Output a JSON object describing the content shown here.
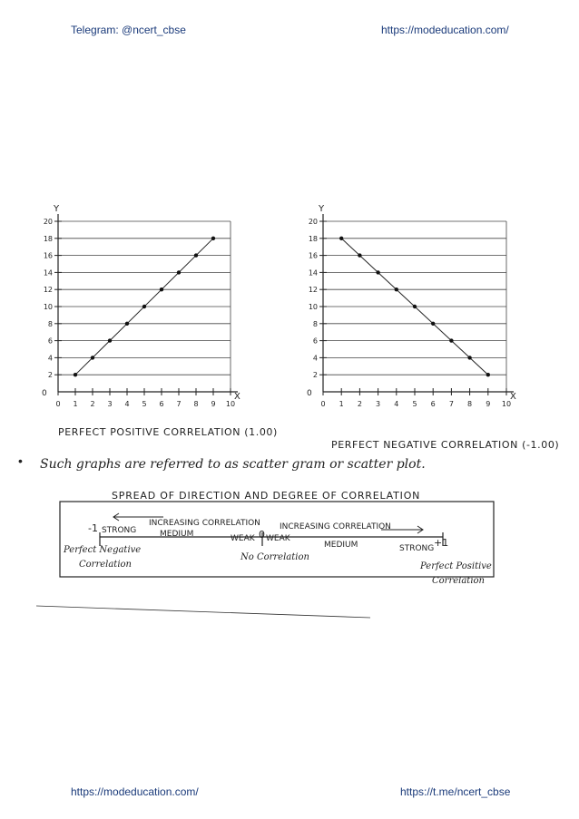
{
  "header": {
    "left": "Telegram: @ncert_cbse",
    "right": "https://modeducation.com/"
  },
  "footer": {
    "left": "https://modeducation.com/",
    "right": "https://t.me/ncert_cbse"
  },
  "text": {
    "bullet": "•",
    "sentence": "Such graphs are referred to as scatter gram or scatter plot.",
    "spread_title": "SPREAD OF DIRECTION AND DEGREE OF CORRELATION"
  },
  "spread": {
    "increasing_left": "INCREASING CORRELATION",
    "increasing_right": "INCREASING CORRELATION",
    "minus_one": "-1",
    "plus_one": "+1",
    "zero": "0",
    "strong_left": "STRONG",
    "strong_right": "STRONG",
    "medium_left": "MEDIUM",
    "medium_right": "MEDIUM",
    "weak_left": "WEAK",
    "weak_right": "WEAK",
    "perfect_negative_1": "Perfect Negative",
    "perfect_negative_2": "Correlation",
    "no_correlation": "No Correlation",
    "perfect_positive_1": "Perfect Positive",
    "perfect_positive_2": "Correlation"
  },
  "chart_data": [
    {
      "type": "scatter",
      "title": "PERFECT POSITIVE CORRELATION (1.00)",
      "xlabel": "X",
      "ylabel": "Y",
      "origin_label": "0",
      "xlim": [
        0,
        10
      ],
      "ylim": [
        0,
        20
      ],
      "x_ticks": [
        0,
        1,
        2,
        3,
        4,
        5,
        6,
        7,
        8,
        9,
        10
      ],
      "y_ticks": [
        2,
        4,
        6,
        8,
        10,
        12,
        14,
        16,
        18,
        20
      ],
      "grid": "horizontal",
      "x": [
        1,
        2,
        3,
        4,
        5,
        6,
        7,
        8,
        9
      ],
      "y": [
        2,
        4,
        6,
        8,
        10,
        12,
        14,
        16,
        18
      ]
    },
    {
      "type": "scatter",
      "title": "PERFECT NEGATIVE CORRELATION (-1.00)",
      "xlabel": "X",
      "ylabel": "Y",
      "origin_label": "0",
      "xlim": [
        0,
        10
      ],
      "ylim": [
        0,
        20
      ],
      "x_ticks": [
        0,
        1,
        2,
        3,
        4,
        5,
        6,
        7,
        8,
        9,
        10
      ],
      "y_ticks": [
        2,
        4,
        6,
        8,
        10,
        12,
        14,
        16,
        18,
        20
      ],
      "grid": "horizontal",
      "x": [
        1,
        2,
        3,
        4,
        5,
        6,
        7,
        8,
        9
      ],
      "y": [
        18,
        16,
        14,
        12,
        10,
        8,
        6,
        4,
        2
      ]
    }
  ]
}
